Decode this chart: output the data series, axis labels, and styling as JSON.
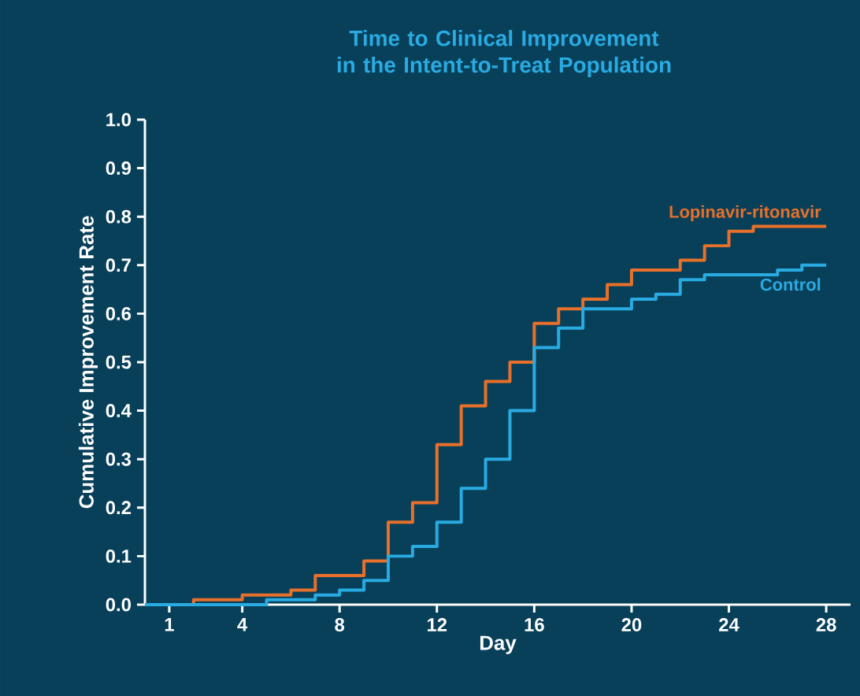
{
  "chart_data": {
    "type": "step",
    "title": "Time to Clinical Improvement in the Intent-to-Treat Population",
    "xlabel": "Day",
    "ylabel": "Cumulative Improvement Rate",
    "xlim": [
      0,
      29
    ],
    "xticks": [
      1,
      4,
      8,
      12,
      16,
      20,
      24,
      28
    ],
    "ylim": [
      0,
      1
    ],
    "yticks": [
      {
        "value": 0,
        "label": "0.0"
      },
      0.1,
      0.2,
      0.3,
      0.4,
      0.5,
      0.6,
      0.7,
      0.8,
      0.9,
      {
        "value": 1,
        "label": "1.0"
      }
    ],
    "grid": false,
    "series": [
      {
        "name": "Lopinavir-ritonavir",
        "color": "#e8702a",
        "x": [
          0,
          2,
          4,
          6,
          7,
          9,
          10,
          11,
          12,
          13,
          14,
          15,
          16,
          17,
          18,
          19,
          20,
          22,
          23,
          24,
          25,
          28
        ],
        "values": [
          0,
          0.01,
          0.02,
          0.03,
          0.06,
          0.09,
          0.17,
          0.21,
          0.33,
          0.41,
          0.46,
          0.5,
          0.58,
          0.61,
          0.63,
          0.66,
          0.69,
          0.71,
          0.74,
          0.77,
          0.78,
          0.78
        ]
      },
      {
        "name": "Control",
        "color": "#29abe2",
        "x": [
          0,
          5,
          7,
          8,
          9,
          10,
          11,
          12,
          13,
          14,
          15,
          16,
          17,
          18,
          20,
          21,
          22,
          23,
          26,
          27,
          28
        ],
        "values": [
          0,
          0.01,
          0.02,
          0.03,
          0.05,
          0.1,
          0.12,
          0.17,
          0.24,
          0.3,
          0.4,
          0.53,
          0.57,
          0.61,
          0.63,
          0.64,
          0.67,
          0.68,
          0.69,
          0.7,
          0.7
        ]
      }
    ]
  }
}
